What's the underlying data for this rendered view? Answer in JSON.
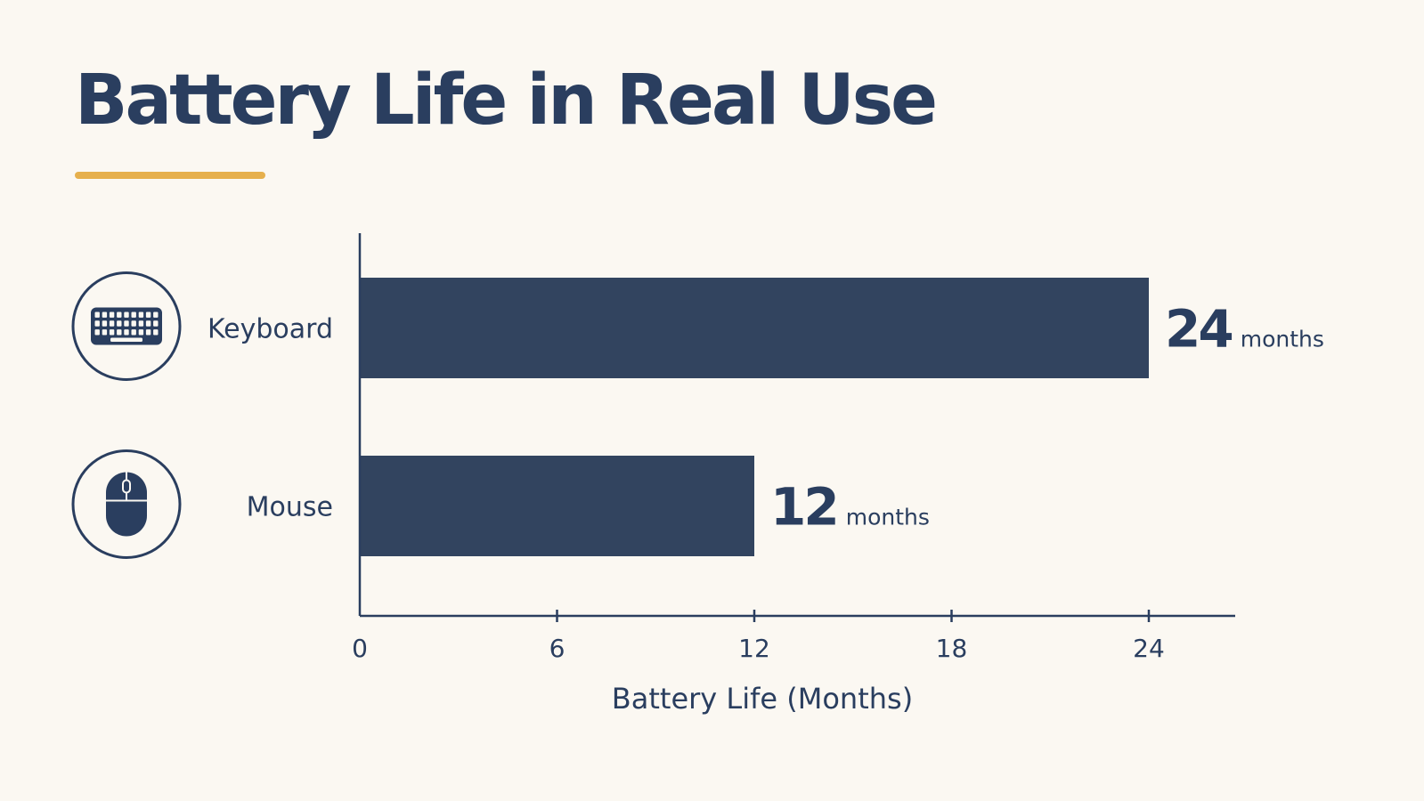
{
  "chart_data": {
    "type": "bar",
    "orientation": "horizontal",
    "title": "Battery Life in Real Use",
    "categories": [
      "Keyboard",
      "Mouse"
    ],
    "category_icons": [
      "keyboard-icon",
      "mouse-icon"
    ],
    "values": [
      24,
      12
    ],
    "value_unit": "months",
    "xlabel": "Battery Life (Months)",
    "ylabel": "",
    "xlim": [
      0,
      26.6
    ],
    "xticks": [
      0,
      6,
      12,
      18,
      24
    ],
    "grid": false,
    "legend": "none"
  },
  "colors": {
    "background": "#fbf8f2",
    "bar": "#32445f",
    "text": "#2a3e5f",
    "accent": "#e6b04d"
  }
}
